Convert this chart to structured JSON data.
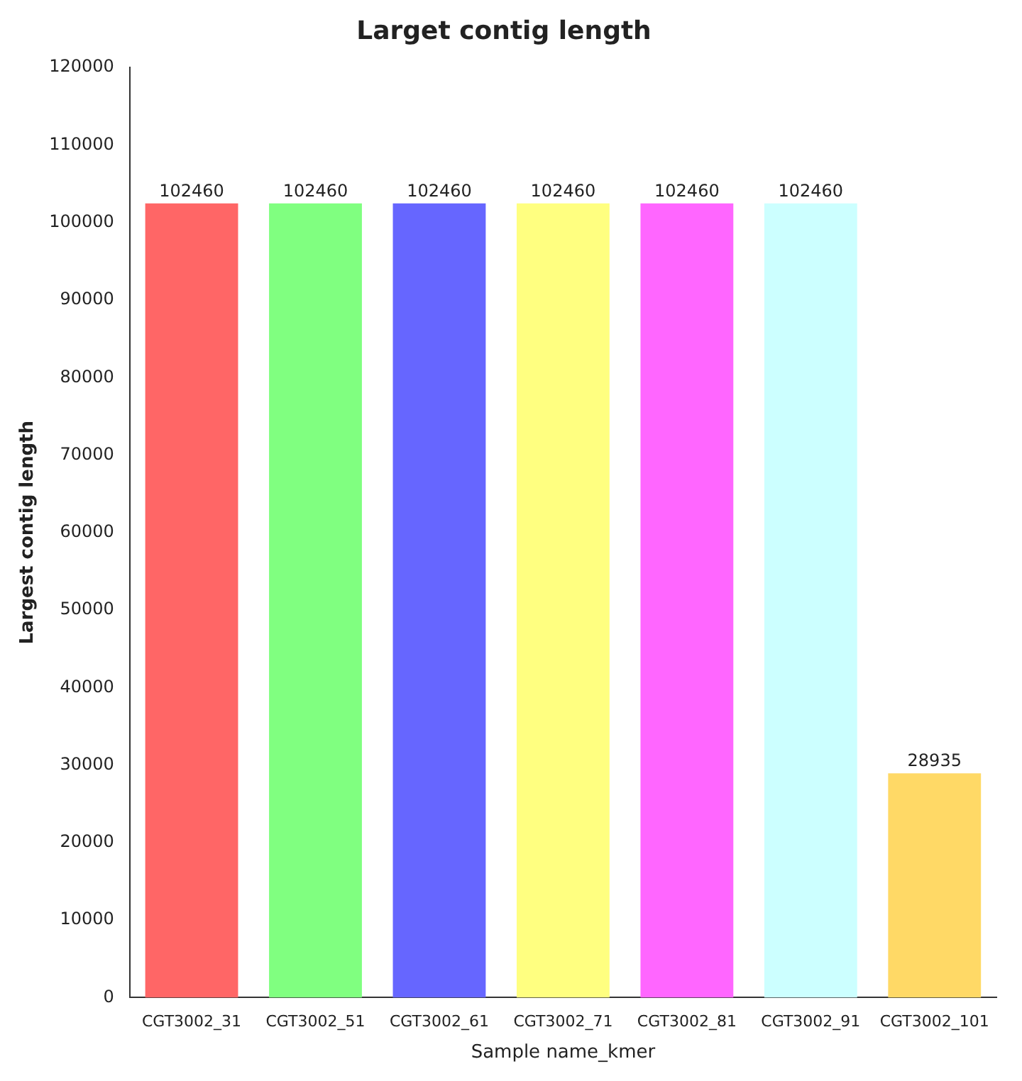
{
  "chart_data": {
    "type": "bar",
    "title": "Larget contig length",
    "xlabel": "Sample name_kmer",
    "ylabel": "Largest contig length",
    "categories": [
      "CGT3002_31",
      "CGT3002_51",
      "CGT3002_61",
      "CGT3002_71",
      "CGT3002_81",
      "CGT3002_91",
      "CGT3002_101"
    ],
    "values": [
      102460,
      102460,
      102460,
      102460,
      102460,
      102460,
      28935
    ],
    "colors": [
      "#ff6666",
      "#80ff80",
      "#6666ff",
      "#ffff80",
      "#ff66ff",
      "#ccffff",
      "#ffd966"
    ],
    "ylim": [
      0,
      120000
    ],
    "yticks": [
      0,
      10000,
      20000,
      30000,
      40000,
      50000,
      60000,
      70000,
      80000,
      90000,
      100000,
      110000,
      120000
    ],
    "grid": false,
    "legend": false,
    "data_labels": true
  }
}
